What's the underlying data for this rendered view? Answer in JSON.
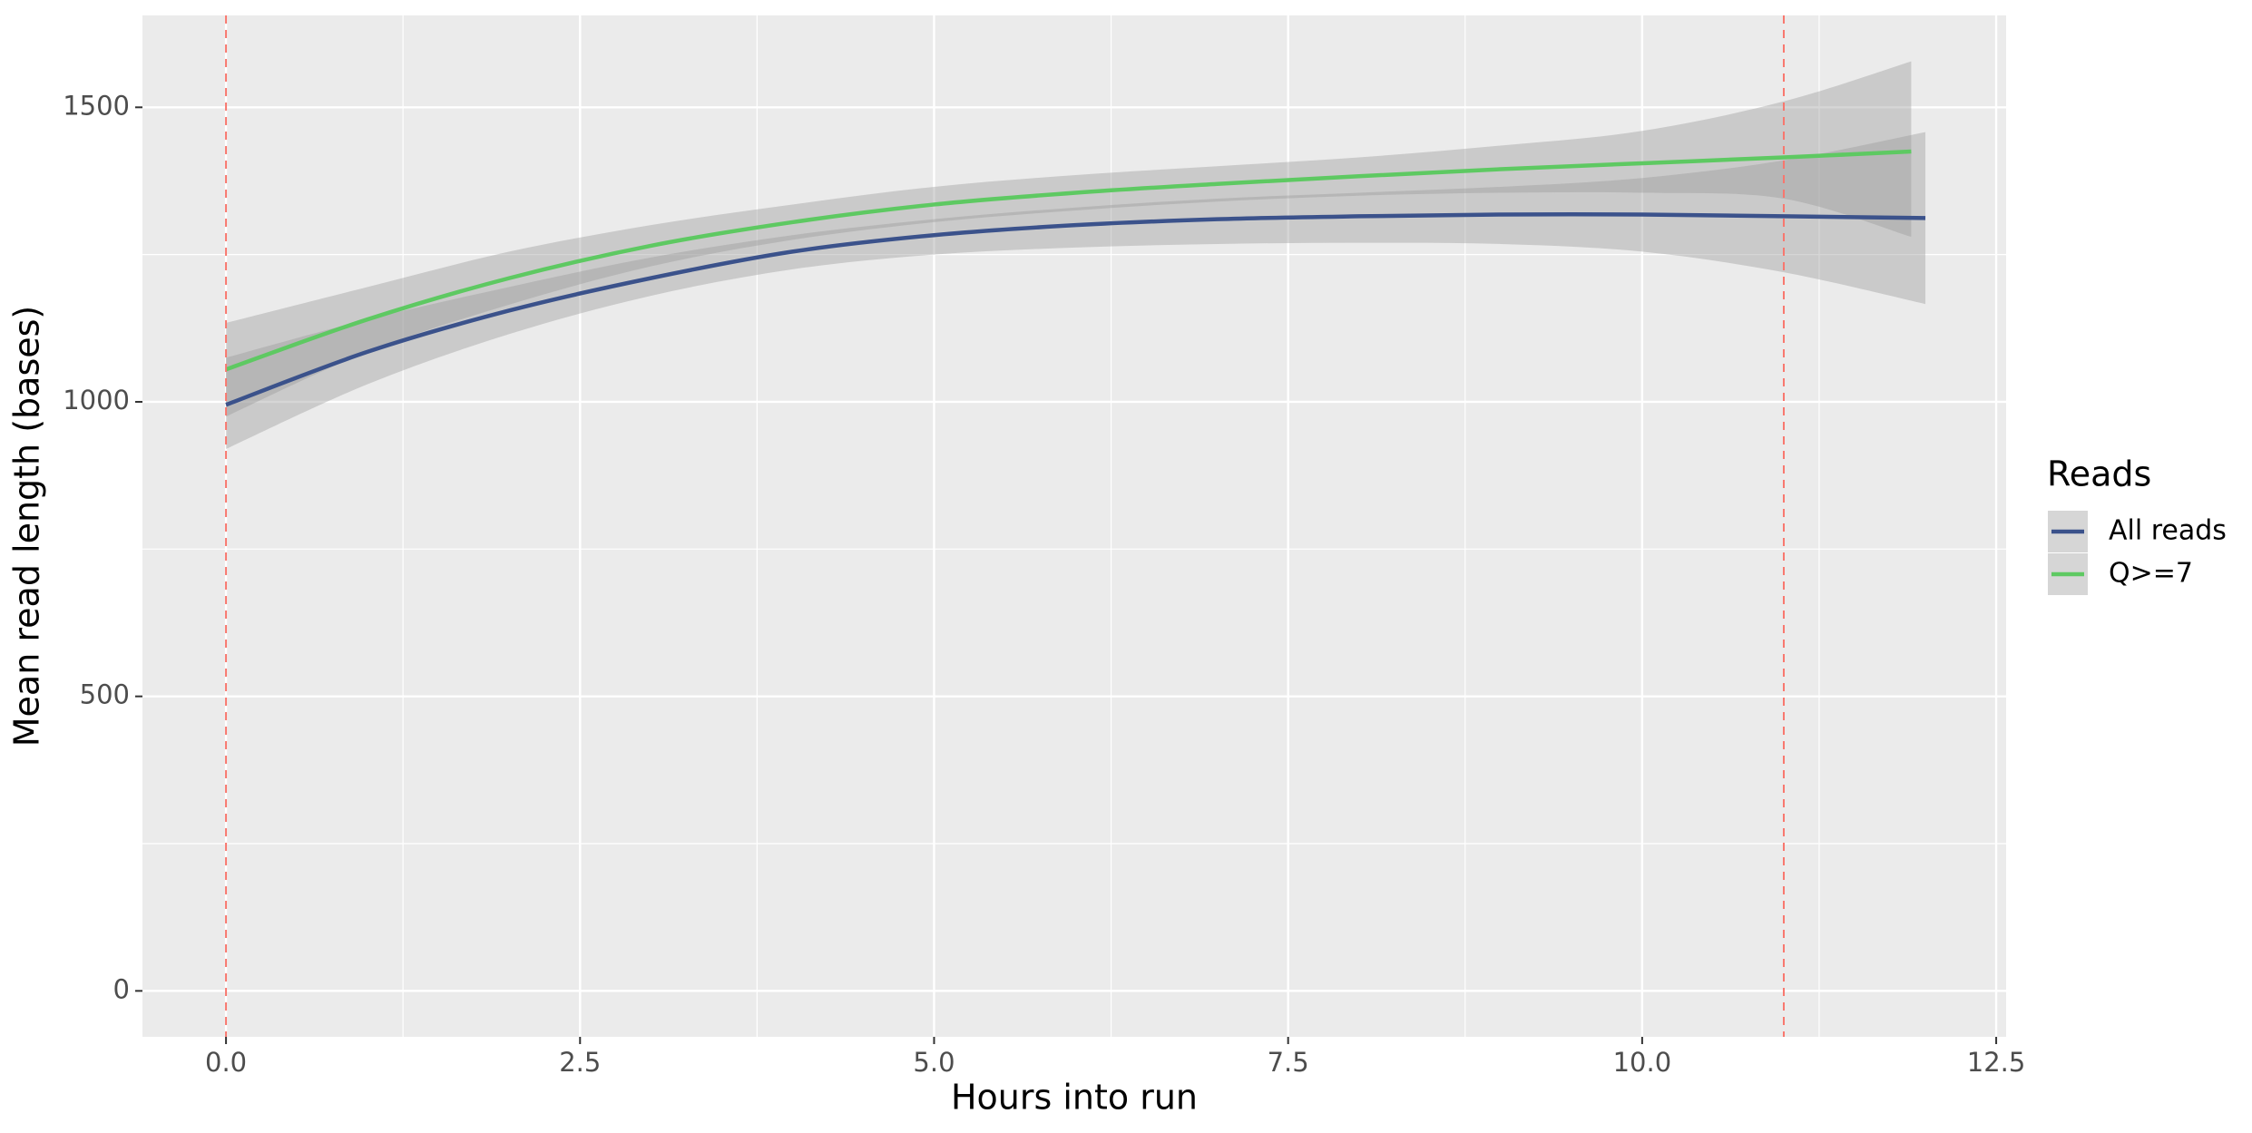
{
  "chart_data": {
    "type": "line",
    "xlabel": "Hours into run",
    "ylabel": "Mean read length (bases)",
    "xlim": [
      -0.59,
      12.57
    ],
    "ylim": [
      -78,
      1656
    ],
    "xticks": [
      {
        "value": 0,
        "label": "0.0"
      },
      2.5,
      {
        "value": 5,
        "label": "5.0"
      },
      7.5,
      {
        "value": 10,
        "label": "10.0"
      },
      12.5
    ],
    "yticks": [
      0,
      500,
      1000,
      1500
    ],
    "xminor": [
      1.25,
      3.75,
      6.25,
      8.75,
      11.25
    ],
    "yminor": [
      250,
      750,
      1250
    ],
    "grid": true,
    "vlines": [
      0,
      11
    ],
    "vline_color": "#f8766d",
    "ribbon_color": "#999999",
    "legend_title": "Reads",
    "legend_position": "right",
    "series": [
      {
        "name": "All reads",
        "color": "#3b528b",
        "x": [
          0,
          1,
          2,
          3,
          4,
          5,
          6,
          7,
          8,
          9,
          10,
          11,
          12
        ],
        "values": [
          995,
          1085,
          1155,
          1210,
          1255,
          1283,
          1300,
          1310,
          1315,
          1318,
          1318,
          1315,
          1312
        ],
        "lower": [
          920,
          1030,
          1115,
          1180,
          1225,
          1250,
          1262,
          1268,
          1270,
          1268,
          1255,
          1220,
          1166
        ],
        "upper": [
          1075,
          1140,
          1195,
          1245,
          1283,
          1310,
          1330,
          1345,
          1355,
          1365,
          1380,
          1410,
          1458
        ]
      },
      {
        "name": "Q>=7",
        "color": "#5ec962",
        "x": [
          0,
          1,
          2,
          3,
          4,
          5,
          6,
          7,
          8,
          9,
          10,
          11,
          11.9
        ],
        "values": [
          1055,
          1140,
          1210,
          1265,
          1305,
          1335,
          1355,
          1370,
          1383,
          1395,
          1405,
          1415,
          1425
        ],
        "lower": [
          975,
          1085,
          1165,
          1230,
          1275,
          1305,
          1325,
          1340,
          1350,
          1355,
          1355,
          1345,
          1280
        ],
        "upper": [
          1134,
          1195,
          1255,
          1300,
          1335,
          1365,
          1385,
          1400,
          1415,
          1435,
          1460,
          1510,
          1578
        ]
      }
    ]
  }
}
